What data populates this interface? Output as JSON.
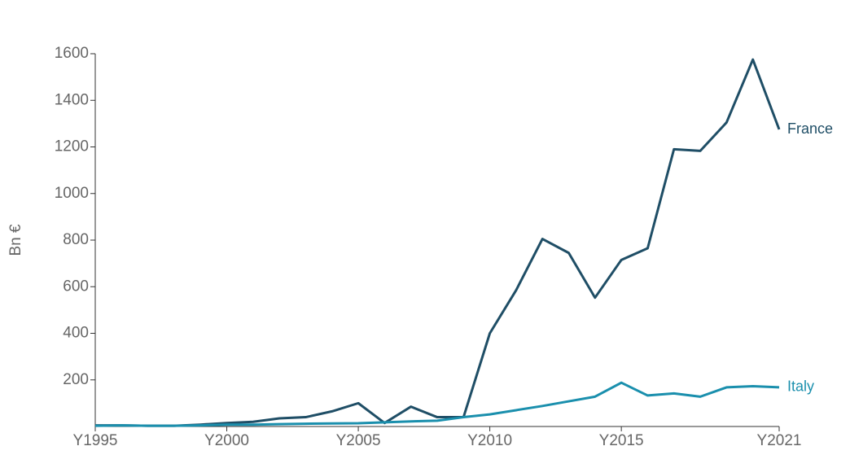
{
  "chart_data": {
    "type": "line",
    "y_label": "Bn €",
    "categories": [
      "Y1995",
      null,
      null,
      null,
      null,
      "Y2000",
      null,
      null,
      null,
      null,
      "Y2005",
      null,
      null,
      null,
      null,
      "Y2010",
      null,
      null,
      null,
      null,
      "Y2015",
      null,
      null,
      null,
      null,
      null,
      "Y2021"
    ],
    "series": [
      {
        "name": "France",
        "color": "#1f4e66",
        "values": [
          5,
          5,
          3,
          3,
          8,
          15,
          20,
          35,
          40,
          65,
          100,
          15,
          85,
          40,
          40,
          400,
          585,
          805,
          745,
          553,
          715,
          765,
          1190,
          1183,
          1305,
          1575,
          1275
        ]
      },
      {
        "name": "Italy",
        "color": "#1a8fad",
        "values": [
          3,
          5,
          3,
          3,
          5,
          8,
          8,
          10,
          12,
          13,
          14,
          18,
          22,
          25,
          40,
          52,
          70,
          88,
          108,
          128,
          188,
          133,
          142,
          128,
          168,
          173,
          168
        ]
      }
    ],
    "ylim": [
      0,
      1600
    ],
    "yticks": [
      200,
      400,
      600,
      800,
      1000,
      1200,
      1400,
      1600
    ]
  }
}
